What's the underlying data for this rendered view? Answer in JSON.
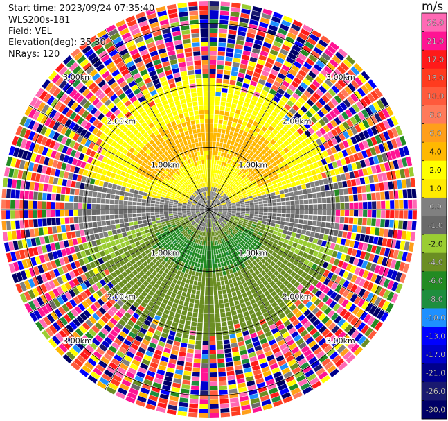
{
  "header": {
    "start_time": "Start time: 2023/09/24 07:35:40",
    "instrument": "WLS200s-181",
    "field": "Field: VEL",
    "elevation": "Elevation(deg): 35.30",
    "nrays": "NRays: 120"
  },
  "chart_data": {
    "type": "heatmap",
    "subtype": "ppi-polar",
    "field": "VEL",
    "nrays": 120,
    "elevation_deg": 35.3,
    "range_rings_km": [
      1.0,
      2.0,
      3.0
    ],
    "ring_labels": [
      "1.00km",
      "1.00km",
      "1.00km",
      "1.00km",
      "2.00km",
      "2.00km",
      "2.00km",
      "2.00km",
      "3.00km",
      "3.00km",
      "3.00km",
      "3.00km"
    ],
    "max_range_km": 3.35,
    "spoke_angles_deg": [
      0,
      30,
      60,
      90,
      120,
      150,
      180,
      210,
      240,
      270,
      300,
      330
    ],
    "velocity_pattern": {
      "north_near": 1.0,
      "north_mid": 3.0,
      "north_core": 5.0,
      "south_near": -2.0,
      "south_core": -5.0,
      "south_mid": -3.0,
      "noise_onset_km": 2.1
    },
    "colorbar": {
      "unit": "m/s",
      "tick_labels": [
        "26.0",
        "21.0",
        "17.0",
        "13.0",
        "10.0",
        "8.0",
        "6.0",
        "4.0",
        "2.0",
        "1.0",
        "0.0",
        "-1.0",
        "-2.0",
        "-4.0",
        "-6.0",
        "-8.0",
        "-10.0",
        "-13.0",
        "-17.0",
        "-21.0",
        "-26.0",
        "-30.0"
      ],
      "colors": [
        "#ff69b4",
        "#ff1493",
        "#ff1a1a",
        "#ff3b1f",
        "#ff5a3c",
        "#ff7a5a",
        "#ff9f1a",
        "#ffb800",
        "#ffff00",
        "#ffea00",
        "#808080",
        "#696969",
        "#9acd32",
        "#6b8e23",
        "#228b22",
        "#1e8e3e",
        "#1e90ff",
        "#0000ff",
        "#0000cd",
        "#00008b",
        "#191970",
        "#000066"
      ]
    }
  }
}
